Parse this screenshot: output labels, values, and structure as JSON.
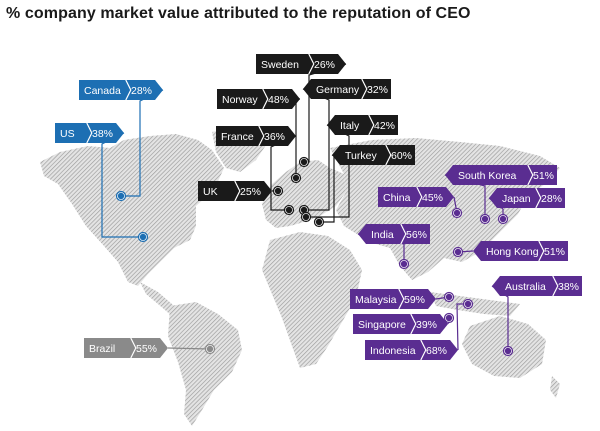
{
  "title": "% company market value attributed to the reputation of CEO",
  "colors": {
    "Americas": "#1d6fb3",
    "Europe": "#1a1a1a",
    "Asia-Pacific": "#5a2d91",
    "South America": "#8a8a8a",
    "land": "#b8b8b8"
  },
  "chart_data": {
    "type": "map",
    "title": "% company market value attributed to the reputation of CEO",
    "unit": "%",
    "countries": [
      {
        "name": "Canada",
        "value": 28,
        "label": "28%",
        "region": "Americas"
      },
      {
        "name": "US",
        "value": 38,
        "label": "38%",
        "region": "Americas"
      },
      {
        "name": "Brazil",
        "value": 55,
        "label": "55%",
        "region": "South America"
      },
      {
        "name": "Sweden",
        "value": 26,
        "label": "26%",
        "region": "Europe"
      },
      {
        "name": "Norway",
        "value": 48,
        "label": "48%",
        "region": "Europe"
      },
      {
        "name": "Germany",
        "value": 32,
        "label": "32%",
        "region": "Europe"
      },
      {
        "name": "France",
        "value": 36,
        "label": "36%",
        "region": "Europe"
      },
      {
        "name": "Italy",
        "value": 42,
        "label": "42%",
        "region": "Europe"
      },
      {
        "name": "Turkey",
        "value": 60,
        "label": "60%",
        "region": "Europe"
      },
      {
        "name": "UK",
        "value": 25,
        "label": "25%",
        "region": "Europe"
      },
      {
        "name": "South Korea",
        "value": 51,
        "label": "51%",
        "region": "Asia-Pacific"
      },
      {
        "name": "China",
        "value": 45,
        "label": "45%",
        "region": "Asia-Pacific"
      },
      {
        "name": "Japan",
        "value": 28,
        "label": "28%",
        "region": "Asia-Pacific"
      },
      {
        "name": "India",
        "value": 56,
        "label": "56%",
        "region": "Asia-Pacific"
      },
      {
        "name": "Hong Kong",
        "value": 51,
        "label": "51%",
        "region": "Asia-Pacific"
      },
      {
        "name": "Malaysia",
        "value": 59,
        "label": "59%",
        "region": "Asia-Pacific"
      },
      {
        "name": "Australia",
        "value": 38,
        "label": "38%",
        "region": "Asia-Pacific"
      },
      {
        "name": "Singapore",
        "value": 39,
        "label": "39%",
        "region": "Asia-Pacific"
      },
      {
        "name": "Indonesia",
        "value": 68,
        "label": "68%",
        "region": "Asia-Pacific"
      }
    ]
  }
}
